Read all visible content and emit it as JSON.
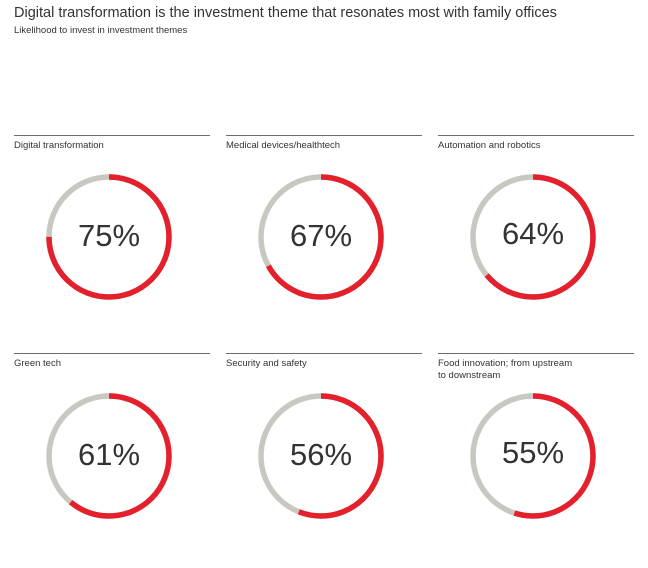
{
  "header": {
    "title": "Digital transformation is the investment theme that resonates most with family offices",
    "subtitle": "Likelihood to invest in investment themes"
  },
  "colors": {
    "accent": "#e3202b",
    "track": "#c9c8c0",
    "rule": "#6d6d6d"
  },
  "chart_data": {
    "type": "donut",
    "title": "Digital transformation is the investment theme that resonates most with family offices",
    "subtitle": "Likelihood to invest in investment themes",
    "unit": "%",
    "categories": [
      "Digital transformation",
      "Medical devices/healthtech",
      "Automation and robotics",
      "Green tech",
      "Security and safety",
      "Food innovation; from upstream\nto downstream"
    ],
    "values": [
      75,
      67,
      64,
      61,
      56,
      55
    ],
    "value_labels": [
      "75%",
      "67%",
      "64%",
      "61%",
      "56%",
      "55%"
    ],
    "ylim": [
      0,
      100
    ]
  }
}
